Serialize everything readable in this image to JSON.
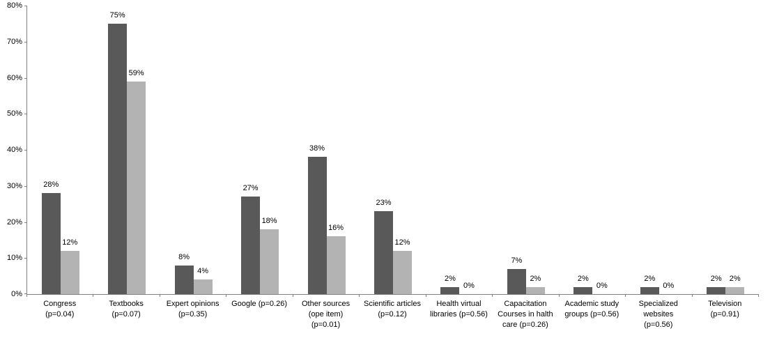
{
  "chart_data": {
    "type": "bar",
    "title": "",
    "categories": [
      "Congress\n(p=0.04)",
      "Textbooks\n(p=0.07)",
      "Expert opinions\n(p=0.35)",
      "Google (p=0.26)",
      "Other sources\n(ope item)\n(p=0.01)",
      "Scientific articles\n(p=0.12)",
      "Health virtual\nlibraries (p=0.56)",
      "Capacitation\nCourses in halth\ncare (p=0.26)",
      "Academic study\ngroups (p=0.56)",
      "Specialized\nwebsites\n(p=0.56)",
      "Television\n(p=0.91)"
    ],
    "series": [
      {
        "id": "series-1-dark",
        "color": "#595959",
        "values": [
          28,
          75,
          8,
          27,
          38,
          23,
          2,
          7,
          2,
          2,
          2
        ]
      },
      {
        "id": "series-2-light",
        "color": "#B3B3B3",
        "values": [
          12,
          59,
          4,
          18,
          16,
          12,
          0,
          2,
          0,
          0,
          2
        ]
      }
    ],
    "value_suffix": "%",
    "ylim": [
      0,
      80
    ],
    "ytick_step": 10,
    "ytick_labels": [
      "0%",
      "10%",
      "20%",
      "30%",
      "40%",
      "50%",
      "60%",
      "70%",
      "80%"
    ],
    "grid": false,
    "legend": "none",
    "axis_color": "#808080",
    "text_color": "#000000"
  }
}
